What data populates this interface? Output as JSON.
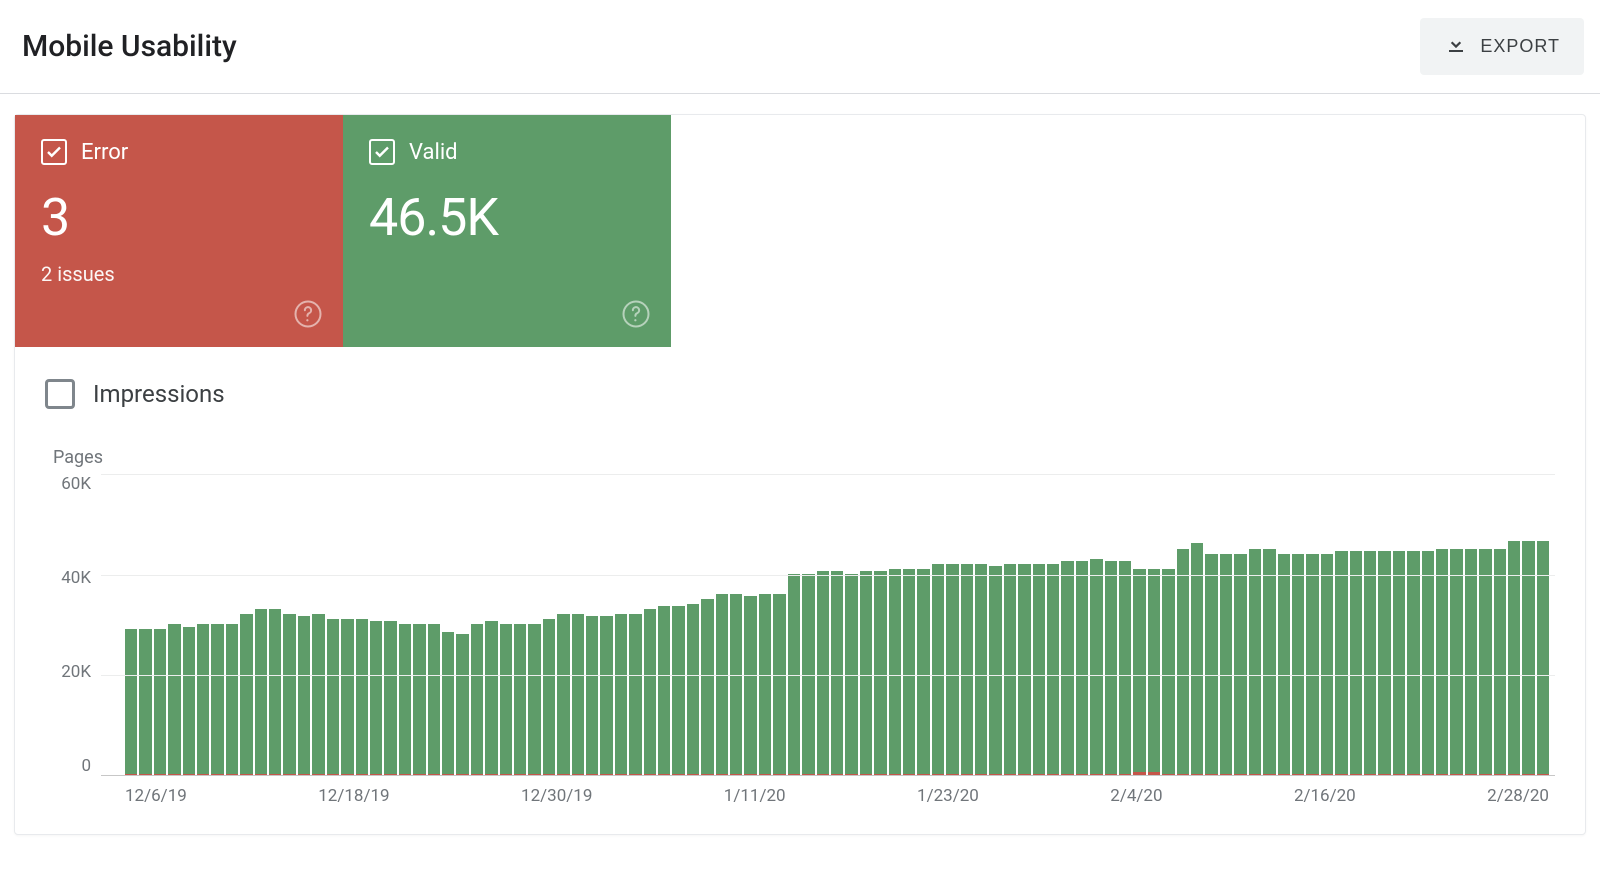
{
  "header": {
    "title": "Mobile Usability",
    "export_label": "EXPORT"
  },
  "cards": {
    "error": {
      "label": "Error",
      "value": "3",
      "subtext": "2 issues",
      "bg_color": "#c5564a",
      "checked": true
    },
    "valid": {
      "label": "Valid",
      "value": "46.5K",
      "subtext": "",
      "bg_color": "#5e9c69",
      "checked": true
    }
  },
  "impressions": {
    "label": "Impressions",
    "checked": false
  },
  "chart": {
    "type": "bar",
    "y_title": "Pages",
    "y_ticks": [
      "60K",
      "40K",
      "20K",
      "0"
    ],
    "y_max": 60,
    "x_ticks": [
      "12/6/19",
      "12/18/19",
      "12/30/19",
      "1/11/20",
      "1/23/20",
      "2/4/20",
      "2/16/20",
      "2/28/20"
    ],
    "valid_color": "#5e9c69",
    "error_color": "#c5564a",
    "grid_color": "#eceded",
    "axis_text_color": "#70757a",
    "background_color": "#ffffff",
    "series_valid": [
      29,
      29,
      29,
      30,
      29.5,
      30,
      30,
      30,
      32,
      33,
      33,
      32,
      31.5,
      32,
      31,
      31,
      31,
      30.5,
      30.5,
      30,
      30,
      30,
      28.5,
      28,
      30,
      30.5,
      30,
      30,
      30,
      31,
      32,
      32,
      31.5,
      31.5,
      32,
      32,
      33,
      33.5,
      33.5,
      34,
      35,
      36,
      36,
      35.5,
      36,
      36,
      40,
      40,
      40.5,
      40.5,
      40,
      40.5,
      40.5,
      41,
      41,
      41,
      42,
      42,
      42,
      42,
      41.5,
      42,
      42,
      42,
      42,
      42.5,
      42.5,
      43,
      42.5,
      42.5,
      41,
      41,
      41,
      45,
      46,
      44,
      44,
      44,
      45,
      45,
      44,
      44,
      44,
      44,
      44.5,
      44.5,
      44.5,
      44.5,
      44.5,
      44.5,
      44.5,
      45,
      45,
      45,
      45,
      45,
      46.5,
      46.5,
      46.5
    ],
    "series_error": [
      0.3,
      0.3,
      0.3,
      0.3,
      0.3,
      0.3,
      0.3,
      0.3,
      0.3,
      0.3,
      0.3,
      0.3,
      0.3,
      0.3,
      0.3,
      0.3,
      0.3,
      0.3,
      0.3,
      0.3,
      0.3,
      0.3,
      0.3,
      0.3,
      0.3,
      0.3,
      0.3,
      0.3,
      0.3,
      0.3,
      0.3,
      0.3,
      0.3,
      0.3,
      0.3,
      0.3,
      0.3,
      0.3,
      0.3,
      0.3,
      0.3,
      0.3,
      0.3,
      0.3,
      0.3,
      0.3,
      0.3,
      0.3,
      0.3,
      0.3,
      0.3,
      0.3,
      0.3,
      0.3,
      0.3,
      0.3,
      0.3,
      0.3,
      0.3,
      0.3,
      0.3,
      0.3,
      0.3,
      0.3,
      0.3,
      0.3,
      0.3,
      0.3,
      0.3,
      0.3,
      0.6,
      0.6,
      0.3,
      0.3,
      0.3,
      0.3,
      0.3,
      0.3,
      0.3,
      0.3,
      0.3,
      0.3,
      0.3,
      0.3,
      0.3,
      0.3,
      0.3,
      0.3,
      0.3,
      0.3,
      0.3,
      0.3,
      0.3,
      0.3,
      0.3,
      0.3,
      0.3,
      0.3,
      0.3
    ]
  }
}
